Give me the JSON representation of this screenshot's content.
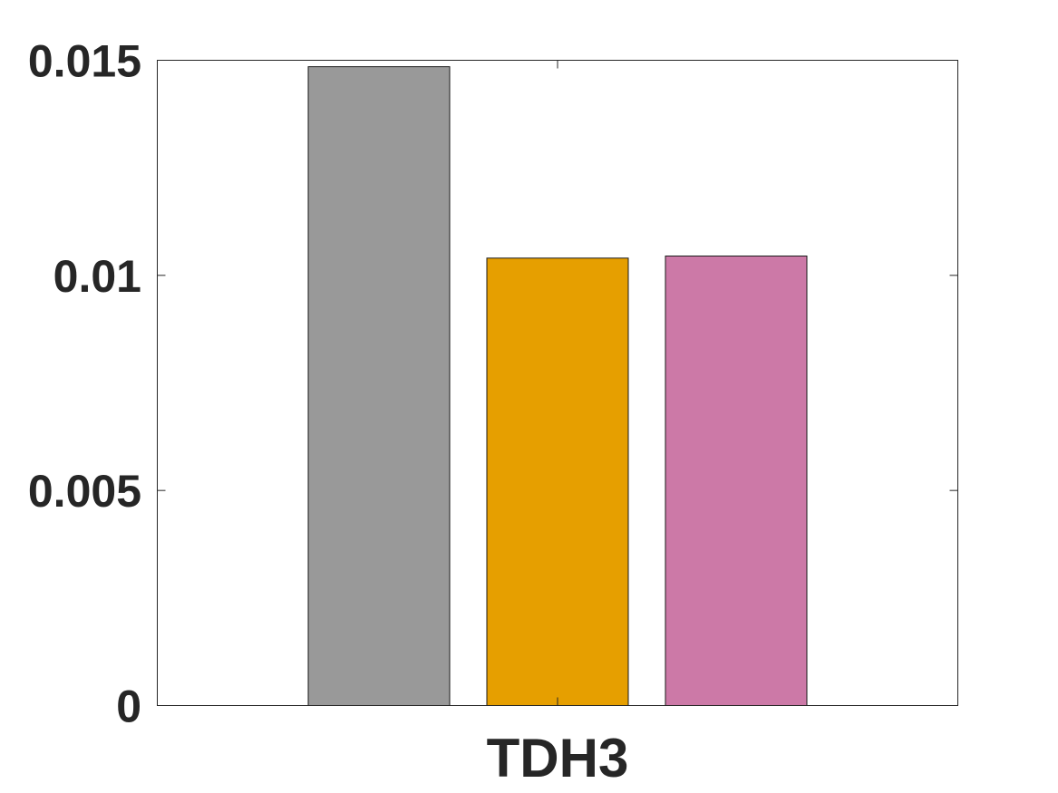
{
  "chart_data": {
    "type": "bar",
    "categories": [
      "TDH3"
    ],
    "series": [
      {
        "values": [
          0.01485
        ],
        "color": "#999999"
      },
      {
        "values": [
          0.0104
        ],
        "color": "#E69F00"
      },
      {
        "values": [
          0.01045
        ],
        "color": "#CC79A7"
      }
    ],
    "ylim": [
      0,
      0.015
    ],
    "yticks": [
      0,
      0.005,
      0.01,
      0.015
    ],
    "ytick_labels": [
      "0",
      "0.005",
      "0.01",
      "0.015"
    ],
    "title": "",
    "xlabel": "",
    "ylabel": "",
    "grid": false,
    "legend": "none"
  }
}
